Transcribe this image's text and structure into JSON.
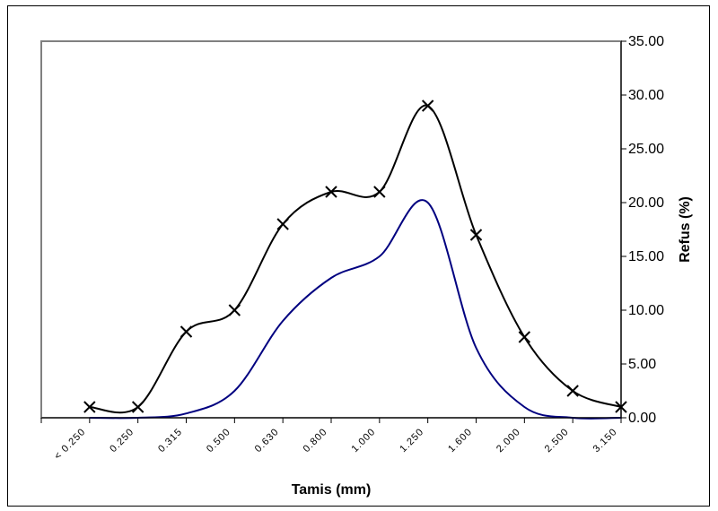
{
  "chart_data": {
    "type": "line",
    "title": "",
    "xlabel": "Tamis (mm)",
    "ylabel": "Refus (%)",
    "ylim": [
      0,
      35
    ],
    "yticks": [
      "0.00",
      "5.00",
      "10.00",
      "15.00",
      "20.00",
      "25.00",
      "30.00",
      "35.00"
    ],
    "grid": false,
    "legend": "none",
    "categories": [
      "< 0.250",
      "0.250",
      "0.315",
      "0.500",
      "0.630",
      "0.800",
      "1.000",
      "1.250",
      "1.600",
      "2.000",
      "2.500",
      "3.150"
    ],
    "series": [
      {
        "color": "#000000",
        "marker": "x",
        "values": [
          1.0,
          1.0,
          8.0,
          10.0,
          18.0,
          21.0,
          21.0,
          29.0,
          17.0,
          7.5,
          2.5,
          1.0
        ]
      },
      {
        "color": "#000080",
        "marker": "none",
        "values": [
          0.0,
          0.0,
          0.4,
          2.5,
          9.0,
          13.0,
          15.0,
          20.0,
          6.5,
          1.0,
          0.0,
          0.0
        ]
      }
    ]
  }
}
